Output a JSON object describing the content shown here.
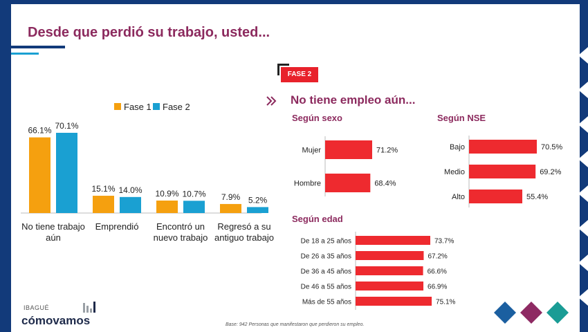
{
  "title": "Desde que perdió su trabajo, usted...",
  "badge": "FASE 2",
  "subtitle": "No tiene empleo aún...",
  "sections": {
    "sexo": "Según sexo",
    "nse": "Según NSE",
    "edad": "Según edad"
  },
  "logo": {
    "city": "IBAGUÉ",
    "name": "cómovamos"
  },
  "footnote": "Base: 942 Personas que manifestaron que perdieron su empleo.",
  "colors": {
    "fase1": "#f5a00f",
    "fase2": "#1aa0d2",
    "red": "#ee2a2f",
    "title": "#8c2a5e",
    "navy": "#123a7a",
    "diamond_blue": "#1b5fa0",
    "diamond_purple": "#8e2a63",
    "diamond_teal": "#1a9c95"
  },
  "chart_data": [
    {
      "type": "bar",
      "categories": [
        [
          "No tiene trabajo",
          "aún"
        ],
        [
          "Emprendió"
        ],
        [
          "Encontró un",
          "nuevo trabajo"
        ],
        [
          "Regresó a su",
          "antiguo trabajo"
        ]
      ],
      "series": [
        {
          "name": "Fase 1",
          "values": [
            66.1,
            15.1,
            10.9,
            7.9
          ],
          "labels": [
            "66.1%",
            "15.1%",
            "10.9%",
            "7.9%"
          ]
        },
        {
          "name": "Fase 2",
          "values": [
            70.1,
            14.0,
            10.7,
            5.2
          ],
          "labels": [
            "70.1%",
            "14.0%",
            "10.7%",
            "5.2%"
          ]
        }
      ],
      "legend": "top",
      "ylim": [
        0,
        75
      ]
    },
    {
      "type": "bar",
      "orientation": "horizontal",
      "title": "Según sexo",
      "categories": [
        "Mujer",
        "Hombre"
      ],
      "values": [
        71.2,
        68.4
      ],
      "labels": [
        "71.2%",
        "68.4%"
      ]
    },
    {
      "type": "bar",
      "orientation": "horizontal",
      "title": "Según NSE",
      "categories": [
        "Bajo",
        "Medio",
        "Alto"
      ],
      "values": [
        70.5,
        69.2,
        55.4
      ],
      "labels": [
        "70.5%",
        "69.2%",
        "55.4%"
      ]
    },
    {
      "type": "bar",
      "orientation": "horizontal",
      "title": "Según edad",
      "categories": [
        "De 18 a 25 años",
        "De 26 a 35 años",
        "De 36 a 45 años",
        "De 46 a 55 años",
        "Más de 55 años"
      ],
      "values": [
        73.7,
        67.2,
        66.6,
        66.9,
        75.1
      ],
      "labels": [
        "73.7%",
        "67.2%",
        "66.6%",
        "66.9%",
        "75.1%"
      ]
    }
  ]
}
